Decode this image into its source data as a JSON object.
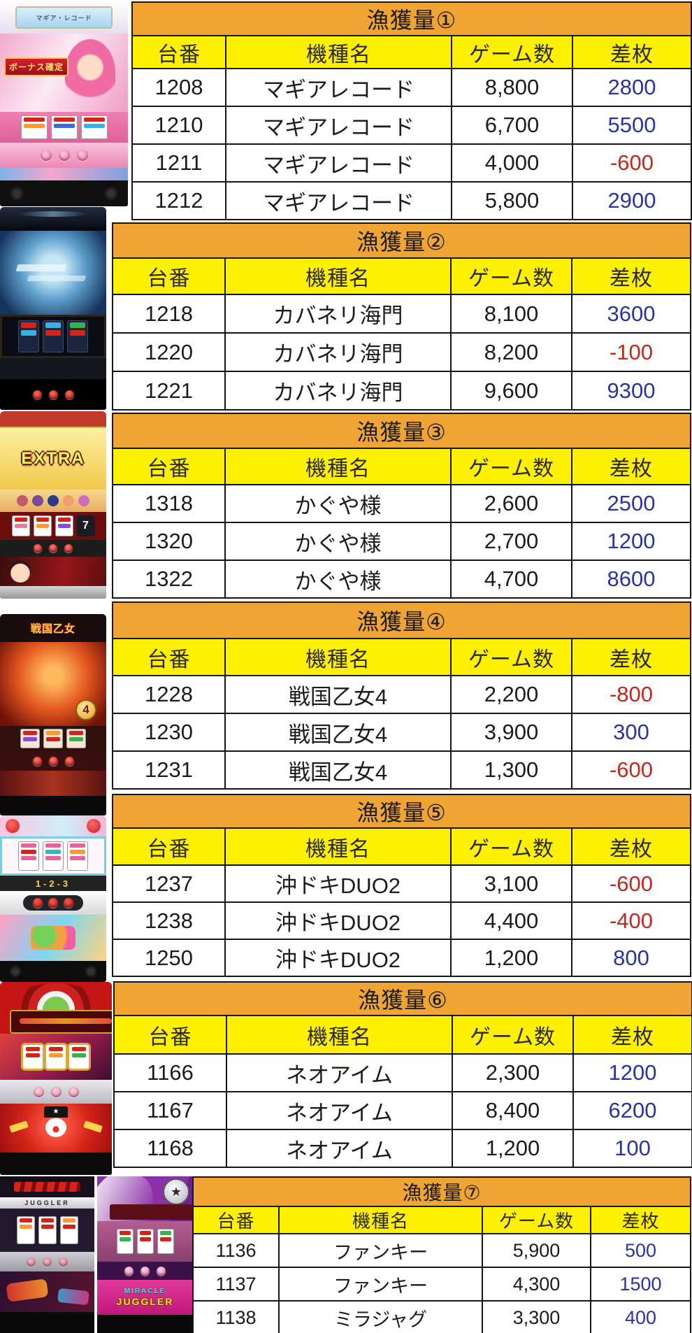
{
  "colors": {
    "header_orange": "#f0a433",
    "header_yellow": "#fdf002",
    "positive_blue": "#2733a8",
    "negative_red": "#c5271d",
    "border_black": "#161616"
  },
  "columns": [
    "台番",
    "機種名",
    "ゲーム数",
    "差枚"
  ],
  "tables": [
    {
      "title": "漁獲量①",
      "rows": [
        {
          "dai": "1208",
          "kishu": "マギアレコード",
          "games": "8,800",
          "diff": "2800"
        },
        {
          "dai": "1210",
          "kishu": "マギアレコード",
          "games": "6,700",
          "diff": "5500"
        },
        {
          "dai": "1211",
          "kishu": "マギアレコード",
          "games": "4,000",
          "diff": "-600"
        },
        {
          "dai": "1212",
          "kishu": "マギアレコード",
          "games": "5,800",
          "diff": "2900"
        }
      ]
    },
    {
      "title": "漁獲量②",
      "rows": [
        {
          "dai": "1218",
          "kishu": "カバネリ海門",
          "games": "8,100",
          "diff": "3600"
        },
        {
          "dai": "1220",
          "kishu": "カバネリ海門",
          "games": "8,200",
          "diff": "-100"
        },
        {
          "dai": "1221",
          "kishu": "カバネリ海門",
          "games": "9,600",
          "diff": "9300"
        }
      ]
    },
    {
      "title": "漁獲量③",
      "rows": [
        {
          "dai": "1318",
          "kishu": "かぐや様",
          "games": "2,600",
          "diff": "2500"
        },
        {
          "dai": "1320",
          "kishu": "かぐや様",
          "games": "2,700",
          "diff": "1200"
        },
        {
          "dai": "1322",
          "kishu": "かぐや様",
          "games": "4,700",
          "diff": "8600"
        }
      ]
    },
    {
      "title": "漁獲量④",
      "rows": [
        {
          "dai": "1228",
          "kishu": "戦国乙女4",
          "games": "2,200",
          "diff": "-800"
        },
        {
          "dai": "1230",
          "kishu": "戦国乙女4",
          "games": "3,900",
          "diff": "300"
        },
        {
          "dai": "1231",
          "kishu": "戦国乙女4",
          "games": "1,300",
          "diff": "-600"
        }
      ]
    },
    {
      "title": "漁獲量⑤",
      "rows": [
        {
          "dai": "1237",
          "kishu": "沖ドキDUO2",
          "games": "3,100",
          "diff": "-600"
        },
        {
          "dai": "1238",
          "kishu": "沖ドキDUO2",
          "games": "4,400",
          "diff": "-400"
        },
        {
          "dai": "1250",
          "kishu": "沖ドキDUO2",
          "games": "1,200",
          "diff": "800"
        }
      ]
    },
    {
      "title": "漁獲量⑥",
      "rows": [
        {
          "dai": "1166",
          "kishu": "ネオアイム",
          "games": "2,300",
          "diff": "1200"
        },
        {
          "dai": "1167",
          "kishu": "ネオアイム",
          "games": "8,400",
          "diff": "6200"
        },
        {
          "dai": "1168",
          "kishu": "ネオアイム",
          "games": "1,200",
          "diff": "100"
        }
      ]
    },
    {
      "title": "漁獲量⑦",
      "rows": [
        {
          "dai": "1136",
          "kishu": "ファンキー",
          "games": "5,900",
          "diff": "500"
        },
        {
          "dai": "1137",
          "kishu": "ファンキー",
          "games": "4,300",
          "diff": "1500"
        },
        {
          "dai": "1138",
          "kishu": "ミラジャグ",
          "games": "3,300",
          "diff": "400"
        }
      ]
    }
  ],
  "machines": [
    {
      "name": "magia-record",
      "plaque": "マギア・レコード",
      "banner": "ボーナス確定"
    },
    {
      "name": "kabaneri"
    },
    {
      "name": "kaguya",
      "screen_text": "EXTRA"
    },
    {
      "name": "sengoku-otome",
      "logo": "戦国乙女",
      "badge": "4"
    },
    {
      "name": "okidoki-duo",
      "digits": "1-2-3"
    },
    {
      "name": "neo-aim"
    },
    {
      "name": "funky-juggler",
      "plate": "JUGGLER"
    },
    {
      "name": "miracle-juggler",
      "panel_line1": "MIRACLE",
      "panel_line2": "JUGGLER",
      "star": "★"
    }
  ]
}
